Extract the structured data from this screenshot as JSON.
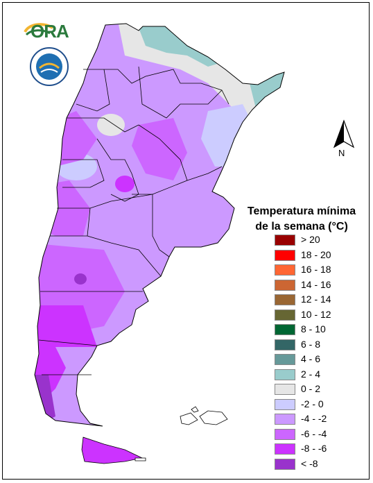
{
  "logo": {
    "text": "ORA",
    "seal_text": "SERVICIO METEOROLOGICO NACIONAL ARGENTINA"
  },
  "compass": {
    "label": "N"
  },
  "legend": {
    "title_line1": "Temperatura mínima",
    "title_line2": "de la semana (°C)",
    "items": [
      {
        "label": "> 20",
        "color": "#990000"
      },
      {
        "label": "18 - 20",
        "color": "#ff0000"
      },
      {
        "label": "16 - 18",
        "color": "#ff6633"
      },
      {
        "label": "14 - 16",
        "color": "#cc6633"
      },
      {
        "label": "12 - 14",
        "color": "#996633"
      },
      {
        "label": "10 - 12",
        "color": "#666633"
      },
      {
        "label": "8 - 10",
        "color": "#006633"
      },
      {
        "label": "6 - 8",
        "color": "#336666"
      },
      {
        "label": "4 - 6",
        "color": "#669999"
      },
      {
        "label": "2 - 4",
        "color": "#99cccc"
      },
      {
        "label": "0 - 2",
        "color": "#e6e6e6"
      },
      {
        "label": "-2 - 0",
        "color": "#ccccff"
      },
      {
        "label": "-4 - -2",
        "color": "#cc99ff"
      },
      {
        "label": "-6 - -4",
        "color": "#cc66ff"
      },
      {
        "label": "-8 - -6",
        "color": "#cc33ff"
      },
      {
        "label": "< -8",
        "color": "#9933cc"
      }
    ]
  }
}
